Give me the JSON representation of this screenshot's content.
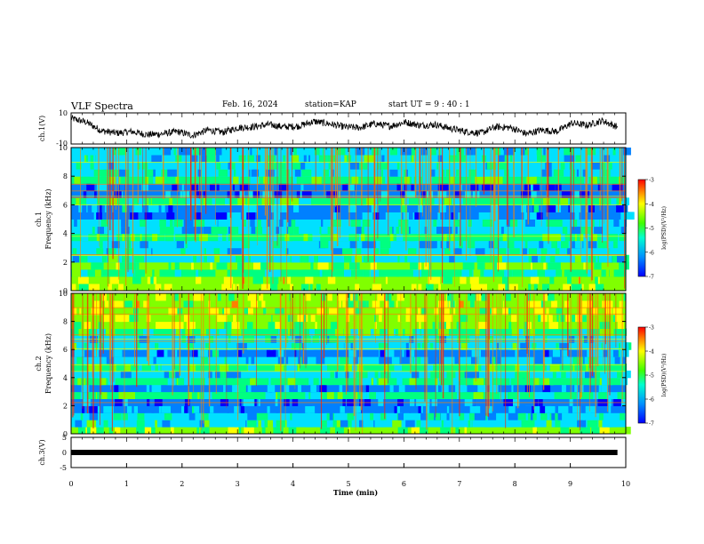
{
  "header": {
    "title": "VLF Spectra",
    "date": "Feb. 16, 2024",
    "station": "station=KAP",
    "start_ut": "start UT = 9 : 40 : 1"
  },
  "colors": {
    "spectrogram_scale": [
      "#0000ff",
      "#0080ff",
      "#00e0ff",
      "#00ff80",
      "#80ff00",
      "#ffff00",
      "#ff8000",
      "#ff0000"
    ]
  },
  "chart_data": [
    {
      "type": "line",
      "ylabel": "ch.1(V)",
      "ylim": [
        -10,
        10
      ],
      "yticks": [
        "10",
        "-10"
      ],
      "x_range": [
        0,
        10
      ],
      "x_data_end": 9.85,
      "approx_values": [
        6.5,
        4.0,
        -1.5,
        -3.0,
        -2.0,
        -4.0,
        -3.5,
        -2.0,
        -4.5,
        -1.0,
        -2.5,
        0.5,
        1.0,
        2.5,
        1.0,
        1.5,
        4.5,
        3.0,
        1.0,
        0.5,
        3.0,
        1.5,
        4.0,
        2.0,
        2.5,
        0.0,
        -2.0,
        -3.0,
        1.0,
        0.5,
        -3.5,
        -1.0,
        -2.0,
        3.5,
        2.0,
        5.0,
        1.0
      ]
    },
    {
      "type": "heatmap",
      "ylabel": "ch.1\nFrequency (kHz)",
      "ylim": [
        0,
        10
      ],
      "yticks": [
        "0",
        "2",
        "4",
        "6",
        "8",
        "10"
      ],
      "colorbar": {
        "label": "log(PSD)(V²/Hz)",
        "range": [
          -7,
          -3
        ],
        "ticks": [
          "-3",
          "-4",
          "-5",
          "-6",
          "-7"
        ]
      },
      "approx_band_levels": [
        0.6,
        0.62,
        0.4,
        0.55,
        0.35,
        0.32,
        0.3,
        0.45,
        0.28,
        0.3,
        0.18,
        0.2,
        0.45,
        0.15,
        0.1,
        0.45,
        0.3,
        0.32,
        0.35,
        0.3
      ]
    },
    {
      "type": "heatmap",
      "ylabel": "ch.2\nFrequency (kHz)",
      "ylim": [
        0,
        10
      ],
      "yticks": [
        "0",
        "2",
        "4",
        "6",
        "8",
        "10"
      ],
      "colorbar": {
        "label": "log(PSD)(V²/Hz)",
        "range": [
          -7,
          -3
        ],
        "ticks": [
          "-3",
          "-4",
          "-5",
          "-6",
          "-7"
        ]
      },
      "approx_band_levels": [
        0.55,
        0.35,
        0.32,
        0.2,
        0.15,
        0.4,
        0.2,
        0.4,
        0.3,
        0.45,
        0.25,
        0.2,
        0.35,
        0.3,
        0.45,
        0.55,
        0.6,
        0.62,
        0.62,
        0.6
      ]
    },
    {
      "type": "line",
      "ylabel": "ch.3(V)",
      "ylim": [
        -5,
        5
      ],
      "yticks": [
        "5",
        "0",
        "-5"
      ],
      "constant_value": 0,
      "xlabel": "Time (min)",
      "xlim": [
        0,
        10
      ],
      "xticks": [
        "0",
        "1",
        "2",
        "3",
        "4",
        "5",
        "6",
        "7",
        "8",
        "9",
        "10"
      ]
    }
  ]
}
